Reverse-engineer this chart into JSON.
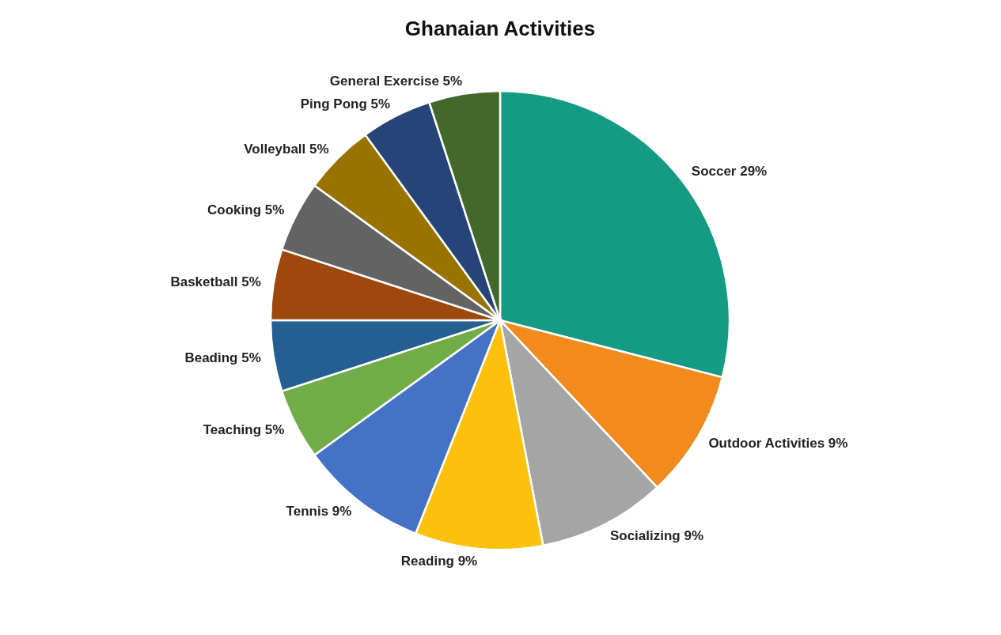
{
  "chart_data": {
    "type": "pie",
    "title": "Ghanaian Activities",
    "categories": [
      "Soccer",
      "Outdoor Activities",
      "Socializing",
      "Reading",
      "Tennis",
      "Teaching",
      "Beading",
      "Basketball",
      "Cooking",
      "Volleyball",
      "Ping Pong",
      "General Exercise"
    ],
    "values": [
      29,
      9,
      9,
      9,
      9,
      5,
      5,
      5,
      5,
      5,
      5,
      5
    ],
    "value_labels": [
      "29%",
      "9%",
      "9%",
      "9%",
      "9%",
      "5%",
      "5%",
      "5%",
      "5%",
      "5%",
      "5%",
      "5%"
    ],
    "colors": [
      "#159a83",
      "#f28a1c",
      "#a5a5a5",
      "#fdc00d",
      "#4472c4",
      "#70ad47",
      "#255e91",
      "#9e480e",
      "#636363",
      "#997300",
      "#264478",
      "#43682b"
    ],
    "legend": false
  }
}
